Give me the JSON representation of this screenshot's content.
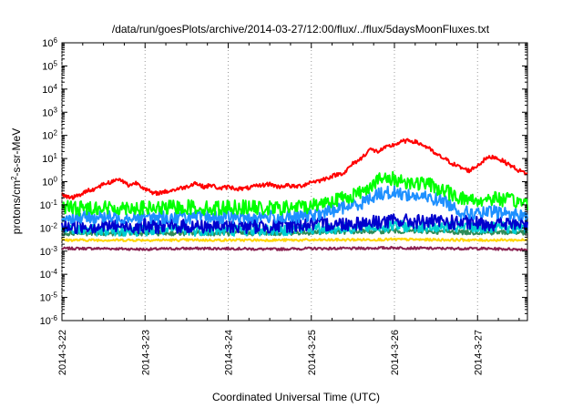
{
  "chart_data": {
    "type": "line",
    "title": "/data/run/goesPlots/archive/2014-03-27/12:00/flux/../flux/5daysMoonFluxes.txt",
    "xlabel": "Coordinated Universal Time (UTC)",
    "ylabel_parts": {
      "pre": "protons/cm",
      "sup": "2",
      "post": "-s-sr-MeV"
    },
    "yscale": "log",
    "ylim": [
      1e-06,
      1000000.0
    ],
    "y_ticks": [
      {
        "base": "10",
        "exp": "-6",
        "value": 1e-06
      },
      {
        "base": "10",
        "exp": "-5",
        "value": 1e-05
      },
      {
        "base": "10",
        "exp": "-4",
        "value": 0.0001
      },
      {
        "base": "10",
        "exp": "-3",
        "value": 0.001
      },
      {
        "base": "10",
        "exp": "-2",
        "value": 0.01
      },
      {
        "base": "10",
        "exp": "-1",
        "value": 0.1
      },
      {
        "base": "10",
        "exp": "0",
        "value": 1
      },
      {
        "base": "10",
        "exp": "1",
        "value": 10
      },
      {
        "base": "10",
        "exp": "2",
        "value": 100
      },
      {
        "base": "10",
        "exp": "3",
        "value": 1000
      },
      {
        "base": "10",
        "exp": "4",
        "value": 10000
      },
      {
        "base": "10",
        "exp": "5",
        "value": 100000
      },
      {
        "base": "10",
        "exp": "6",
        "value": 1000000
      }
    ],
    "x_ticks": [
      "2014-3-22",
      "2014-3-23",
      "2014-3-24",
      "2014-3-25",
      "2014-3-26",
      "2014-3-27"
    ],
    "x_range_days": [
      0,
      5.6
    ],
    "grid": "dotted vertical at day ticks",
    "series": [
      {
        "color": "#ff0000",
        "x": [
          0,
          0.1,
          0.2,
          0.3,
          0.4,
          0.5,
          0.6,
          0.7,
          0.8,
          0.9,
          1.0,
          1.1,
          1.2,
          1.3,
          1.4,
          1.5,
          1.6,
          1.7,
          1.8,
          1.9,
          2.0,
          2.1,
          2.2,
          2.3,
          2.4,
          2.5,
          2.6,
          2.7,
          2.8,
          2.9,
          3.0,
          3.1,
          3.2,
          3.3,
          3.4,
          3.5,
          3.6,
          3.7,
          3.8,
          3.9,
          4.0,
          4.1,
          4.2,
          4.3,
          4.4,
          4.5,
          4.6,
          4.7,
          4.8,
          4.9,
          5.0,
          5.1,
          5.2,
          5.3,
          5.4,
          5.5,
          5.6
        ],
        "y": [
          0.3,
          0.2,
          0.25,
          0.4,
          0.5,
          0.8,
          1.0,
          1.3,
          0.7,
          0.9,
          0.5,
          0.3,
          0.35,
          0.4,
          0.5,
          0.6,
          0.9,
          0.6,
          0.7,
          0.5,
          0.6,
          0.5,
          0.5,
          0.6,
          0.7,
          0.8,
          0.6,
          0.7,
          0.6,
          0.7,
          1.0,
          1.1,
          1.5,
          2.0,
          2.5,
          6.0,
          10,
          25,
          20,
          30,
          40,
          55,
          60,
          45,
          30,
          15,
          10,
          6,
          4,
          3,
          5,
          10,
          12,
          8,
          5,
          3,
          2.2
        ],
        "noise": 0.25
      },
      {
        "color": "#00ff00",
        "x": [
          0,
          0.2,
          0.4,
          0.6,
          0.8,
          1.0,
          1.2,
          1.4,
          1.6,
          1.8,
          2.0,
          2.2,
          2.4,
          2.6,
          2.8,
          3.0,
          3.2,
          3.4,
          3.6,
          3.8,
          4.0,
          4.2,
          4.4,
          4.6,
          4.8,
          5.0,
          5.2,
          5.4,
          5.6
        ],
        "y": [
          0.08,
          0.07,
          0.08,
          0.07,
          0.08,
          0.07,
          0.07,
          0.08,
          0.08,
          0.07,
          0.08,
          0.08,
          0.07,
          0.07,
          0.08,
          0.09,
          0.15,
          0.2,
          0.35,
          1.2,
          1.3,
          0.9,
          0.8,
          0.4,
          0.2,
          0.15,
          0.2,
          0.15,
          0.12
        ],
        "noise": 0.9
      },
      {
        "color": "#1e90ff",
        "x": [
          0,
          0.2,
          0.4,
          0.6,
          0.8,
          1.0,
          1.2,
          1.4,
          1.6,
          1.8,
          2.0,
          2.2,
          2.4,
          2.6,
          2.8,
          3.0,
          3.2,
          3.4,
          3.6,
          3.8,
          4.0,
          4.2,
          4.4,
          4.6,
          4.8,
          5.0,
          5.2,
          5.4,
          5.6
        ],
        "y": [
          0.03,
          0.028,
          0.03,
          0.028,
          0.03,
          0.03,
          0.028,
          0.03,
          0.028,
          0.03,
          0.03,
          0.028,
          0.03,
          0.03,
          0.028,
          0.035,
          0.05,
          0.08,
          0.12,
          0.3,
          0.35,
          0.25,
          0.2,
          0.15,
          0.05,
          0.04,
          0.05,
          0.04,
          0.035
        ],
        "noise": 0.8
      },
      {
        "color": "#0000cd",
        "x": [
          0,
          0.5,
          1.0,
          1.5,
          2.0,
          2.5,
          3.0,
          3.5,
          4.0,
          4.5,
          5.0,
          5.5,
          5.6
        ],
        "y": [
          0.012,
          0.012,
          0.012,
          0.012,
          0.012,
          0.012,
          0.014,
          0.016,
          0.02,
          0.018,
          0.016,
          0.015,
          0.015
        ],
        "noise": 0.9
      },
      {
        "color": "#00ced1",
        "x": [
          0,
          0.5,
          1.0,
          1.5,
          2.0,
          2.5,
          3.0,
          3.5,
          4.0,
          4.5,
          5.0,
          5.5,
          5.6
        ],
        "y": [
          0.008,
          0.008,
          0.008,
          0.008,
          0.008,
          0.008,
          0.009,
          0.01,
          0.012,
          0.011,
          0.01,
          0.01,
          0.01
        ],
        "noise": 0.7
      },
      {
        "color": "#2e8b57",
        "x": [
          0,
          0.5,
          1.0,
          1.5,
          2.0,
          2.5,
          3.0,
          3.5,
          4.0,
          4.5,
          5.0,
          5.5,
          5.6
        ],
        "y": [
          0.006,
          0.006,
          0.006,
          0.006,
          0.006,
          0.006,
          0.0065,
          0.007,
          0.0075,
          0.007,
          0.0065,
          0.0065,
          0.0065
        ],
        "noise": 0.3
      },
      {
        "color": "#ffd700",
        "x": [
          0,
          1,
          2,
          3,
          4,
          5,
          5.6
        ],
        "y": [
          0.003,
          0.003,
          0.003,
          0.003,
          0.0032,
          0.003,
          0.003
        ],
        "noise": 0.15
      },
      {
        "color": "#8b2252",
        "x": [
          0,
          0.5,
          1,
          1.5,
          2,
          2.5,
          3,
          3.5,
          4,
          4.5,
          5,
          5.5,
          5.6
        ],
        "y": [
          0.0013,
          0.0013,
          0.0012,
          0.0013,
          0.0013,
          0.0012,
          0.0013,
          0.0013,
          0.0014,
          0.0013,
          0.0013,
          0.0012,
          0.0012
        ],
        "noise": 0.15
      }
    ]
  }
}
